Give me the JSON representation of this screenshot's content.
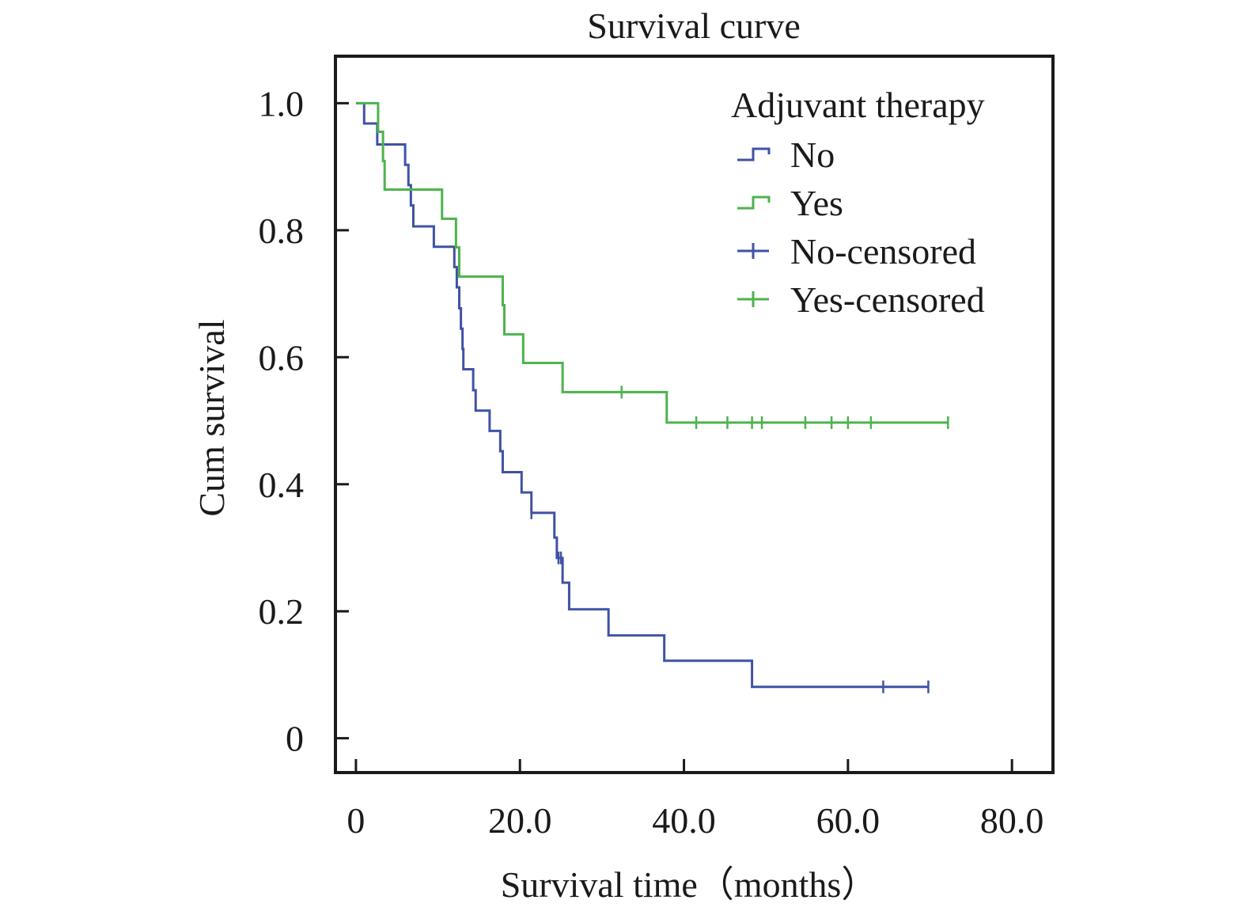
{
  "chart_data": {
    "type": "line",
    "title": "Survival curve",
    "xlabel": "Survival time（months）",
    "ylabel": "Cum survival",
    "xlim": [
      -2.5,
      85
    ],
    "ylim": [
      -0.054,
      1.074
    ],
    "x_ticks": [
      0,
      20,
      40,
      60,
      80
    ],
    "x_tick_labels": [
      "0",
      "20.0",
      "40.0",
      "60.0",
      "80.0"
    ],
    "y_ticks": [
      0,
      0.2,
      0.4,
      0.6,
      0.8,
      1.0
    ],
    "y_tick_labels": [
      "0",
      "0.2",
      "0.4",
      "0.6",
      "0.8",
      "1.0"
    ],
    "grid": false,
    "legend": {
      "title": "Adjuvant therapy",
      "placement": "top-right",
      "entries": [
        {
          "label": "No",
          "kind": "line",
          "series": "No"
        },
        {
          "label": "Yes",
          "kind": "line",
          "series": "Yes"
        },
        {
          "label": "No-censored",
          "kind": "censor",
          "series": "No"
        },
        {
          "label": "Yes-censored",
          "kind": "censor",
          "series": "Yes"
        }
      ]
    },
    "series": [
      {
        "name": "No",
        "color": "#3f52a4",
        "steps": [
          [
            0,
            1.0
          ],
          [
            1,
            0.968
          ],
          [
            2.6,
            0.935
          ],
          [
            6,
            0.903
          ],
          [
            6.4,
            0.871
          ],
          [
            6.7,
            0.839
          ],
          [
            7,
            0.806
          ],
          [
            9.5,
            0.774
          ],
          [
            12,
            0.742
          ],
          [
            12.3,
            0.71
          ],
          [
            12.6,
            0.677
          ],
          [
            12.8,
            0.645
          ],
          [
            13,
            0.613
          ],
          [
            13.1,
            0.581
          ],
          [
            14.3,
            0.548
          ],
          [
            14.6,
            0.516
          ],
          [
            16.3,
            0.484
          ],
          [
            17.6,
            0.452
          ],
          [
            17.9,
            0.419
          ],
          [
            20.2,
            0.387
          ],
          [
            21.4,
            0.355
          ],
          [
            24.2,
            0.316
          ],
          [
            24.5,
            0.284
          ],
          [
            25.2,
            0.245
          ],
          [
            26,
            0.203
          ],
          [
            30.8,
            0.162
          ],
          [
            37.6,
            0.122
          ],
          [
            48.3,
            0.081
          ]
        ],
        "end_x": 69.8,
        "censored": [
          [
            21.4,
            0.355
          ],
          [
            24.7,
            0.284
          ],
          [
            25.0,
            0.284
          ],
          [
            64.3,
            0.081
          ],
          [
            69.8,
            0.081
          ]
        ]
      },
      {
        "name": "Yes",
        "color": "#4db34c",
        "steps": [
          [
            0,
            1.0
          ],
          [
            2.7,
            0.955
          ],
          [
            3.3,
            0.909
          ],
          [
            3.5,
            0.864
          ],
          [
            10.5,
            0.818
          ],
          [
            12.2,
            0.773
          ],
          [
            12.6,
            0.727
          ],
          [
            17.9,
            0.682
          ],
          [
            18.1,
            0.636
          ],
          [
            20.4,
            0.591
          ],
          [
            25.2,
            0.545
          ],
          [
            37.9,
            0.497
          ]
        ],
        "end_x": 72.2,
        "censored": [
          [
            32.4,
            0.545
          ],
          [
            41.5,
            0.497
          ],
          [
            45.3,
            0.497
          ],
          [
            48.3,
            0.497
          ],
          [
            49.5,
            0.497
          ],
          [
            54.8,
            0.497
          ],
          [
            58,
            0.497
          ],
          [
            60,
            0.497
          ],
          [
            62.8,
            0.497
          ],
          [
            72.2,
            0.497
          ]
        ]
      }
    ]
  }
}
